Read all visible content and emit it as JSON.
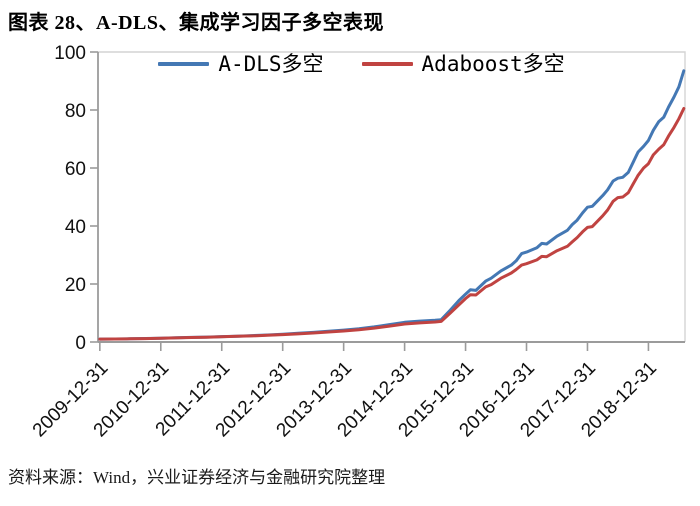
{
  "title": "图表 28、A-DLS、集成学习因子多空表现",
  "source": "资料来源：Wind，兴业证券经济与金融研究院整理",
  "chart_data": {
    "type": "line",
    "title": "",
    "xlabel": "",
    "ylabel": "",
    "ylim": [
      0,
      100
    ],
    "yticks": [
      0,
      20,
      40,
      60,
      80,
      100
    ],
    "xlim": [
      2009.97,
      2019.6
    ],
    "x_tick_positions": [
      2010,
      2011,
      2012,
      2013,
      2014,
      2015,
      2016,
      2017,
      2018,
      2019
    ],
    "x_tick_labels": [
      "2009-12-31",
      "2010-12-31",
      "2011-12-31",
      "2012-12-31",
      "2013-12-31",
      "2014-12-31",
      "2015-12-31",
      "2016-12-31",
      "2017-12-31",
      "2018-12-31"
    ],
    "grid": false,
    "legend_position": "top-center-inside",
    "x": [
      2010.0,
      2010.25,
      2010.5,
      2010.75,
      2011.0,
      2011.25,
      2011.5,
      2011.75,
      2012.0,
      2012.25,
      2012.5,
      2012.75,
      2013.0,
      2013.25,
      2013.5,
      2013.75,
      2014.0,
      2014.25,
      2014.5,
      2014.75,
      2015.0,
      2015.25,
      2015.5,
      2015.6,
      2015.75,
      2015.9,
      2016.0,
      2016.08,
      2016.17,
      2016.33,
      2016.42,
      2016.58,
      2016.75,
      2016.83,
      2016.92,
      2017.0,
      2017.17,
      2017.25,
      2017.33,
      2017.5,
      2017.67,
      2017.75,
      2017.83,
      2017.92,
      2018.0,
      2018.08,
      2018.25,
      2018.33,
      2018.42,
      2018.5,
      2018.58,
      2018.67,
      2018.75,
      2018.83,
      2018.92,
      2019.0,
      2019.08,
      2019.17,
      2019.25,
      2019.33,
      2019.42,
      2019.5,
      2019.58
    ],
    "series": [
      {
        "name": "A-DLS多空",
        "color": "#4478b4",
        "values": [
          1.0,
          1.05,
          1.1,
          1.2,
          1.3,
          1.45,
          1.6,
          1.7,
          1.85,
          2.0,
          2.2,
          2.4,
          2.7,
          3.0,
          3.3,
          3.7,
          4.1,
          4.6,
          5.2,
          6.0,
          6.8,
          7.2,
          7.5,
          7.7,
          11.0,
          14.5,
          16.5,
          18.0,
          17.8,
          21.0,
          22.0,
          24.5,
          26.5,
          28.0,
          30.5,
          31.0,
          32.5,
          34.0,
          33.8,
          36.5,
          38.5,
          40.5,
          42.0,
          44.5,
          46.5,
          46.8,
          50.5,
          52.5,
          55.5,
          56.5,
          56.8,
          58.5,
          62.0,
          65.5,
          67.5,
          69.5,
          73.0,
          76.0,
          77.5,
          81.0,
          84.5,
          88.0,
          93.5
        ]
      },
      {
        "name": "Adaboost多空",
        "color": "#c04341",
        "values": [
          1.0,
          1.05,
          1.1,
          1.18,
          1.28,
          1.42,
          1.55,
          1.65,
          1.8,
          1.95,
          2.1,
          2.3,
          2.55,
          2.8,
          3.1,
          3.45,
          3.8,
          4.25,
          4.8,
          5.5,
          6.2,
          6.6,
          6.9,
          7.1,
          10.0,
          13.0,
          15.0,
          16.3,
          16.2,
          19.0,
          19.8,
          22.0,
          23.8,
          25.0,
          26.5,
          27.0,
          28.3,
          29.5,
          29.4,
          31.5,
          33.0,
          34.5,
          36.0,
          38.0,
          39.5,
          39.8,
          43.5,
          45.5,
          48.5,
          49.8,
          50.0,
          51.5,
          54.5,
          57.5,
          60.0,
          61.5,
          64.5,
          66.5,
          68.0,
          71.0,
          74.0,
          77.0,
          80.5
        ]
      }
    ]
  },
  "colors": {
    "series_blue": "#4478b4",
    "series_red": "#c04341",
    "axis_line": "#9b9b9b",
    "plot_border": "#d4d4d4",
    "tick_label": "#111111"
  }
}
